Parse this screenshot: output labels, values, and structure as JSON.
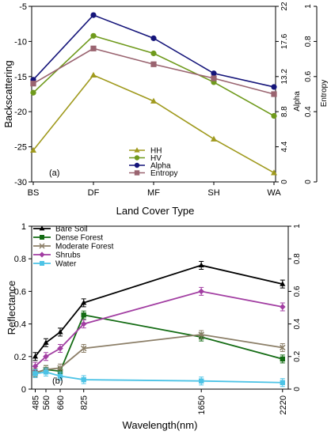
{
  "chart_data": [
    {
      "type": "line",
      "panel_label": "(a)",
      "xlabel": "Land Cover Type",
      "ylabel": "Backscattering",
      "categories": [
        "BS",
        "DF",
        "MF",
        "SH",
        "WA"
      ],
      "ylim": [
        -30,
        -5
      ],
      "yticks": [
        "-30",
        "-25",
        "-20",
        "-15",
        "-10",
        "-5"
      ],
      "ylabel_right_alpha": "Alpha",
      "ylabel_right_entropy": "Entropy",
      "alpha_ticks": [
        "0",
        "4.4",
        "8.8",
        "13.2",
        "17.6",
        "22"
      ],
      "entropy_ticks": [
        "0",
        "0.4",
        "0.6",
        "0.8",
        "1"
      ],
      "legend_position": "bottom-center",
      "grid": false,
      "series": [
        {
          "name": "HH",
          "color": "#a09a1e",
          "marker": "triangle",
          "values": [
            -25.5,
            -14.8,
            -18.5,
            -23.9,
            -28.7
          ]
        },
        {
          "name": "HV",
          "color": "#6f9a1c",
          "marker": "circle",
          "values": [
            -17.3,
            -9.2,
            -11.7,
            -15.8,
            -20.6
          ]
        },
        {
          "name": "Alpha",
          "color": "#15157a",
          "marker": "circle",
          "values": [
            12.8,
            20.9,
            18.0,
            13.6,
            11.9
          ]
        },
        {
          "name": "Entropy",
          "color": "#9a6470",
          "marker": "square",
          "values": [
            0.56,
            0.76,
            0.67,
            0.59,
            0.5
          ]
        }
      ]
    },
    {
      "type": "line",
      "panel_label": "(b)",
      "xlabel": "Wavelength(nm)",
      "ylabel": "Reflectance",
      "x": [
        485,
        560,
        660,
        825,
        1650,
        2220
      ],
      "xticks": [
        "485",
        "560",
        "660",
        "825",
        "1650",
        "2220"
      ],
      "ylim": [
        0,
        1
      ],
      "yticks": [
        "0",
        "0.2",
        "0.4",
        "0.6",
        "0.8",
        "1"
      ],
      "right_ticks": [
        "0",
        "0.2",
        "0.4",
        "0.6",
        "0.8",
        "1"
      ],
      "legend_position": "top-left",
      "grid": false,
      "series": [
        {
          "name": "Bare Soil",
          "color": "#000000",
          "marker": "triangle",
          "values": [
            0.2,
            0.285,
            0.35,
            0.53,
            0.76,
            0.645
          ]
        },
        {
          "name": "Dense Forest",
          "color": "#136b13",
          "marker": "square",
          "values": [
            0.1,
            0.12,
            0.11,
            0.455,
            0.32,
            0.185
          ]
        },
        {
          "name": "Moderate Forest",
          "color": "#8c7f68",
          "marker": "x",
          "values": [
            0.1,
            0.12,
            0.13,
            0.25,
            0.335,
            0.255
          ]
        },
        {
          "name": "Shrubs",
          "color": "#a23ea2",
          "marker": "diamond",
          "values": [
            0.14,
            0.2,
            0.25,
            0.4,
            0.6,
            0.505
          ]
        },
        {
          "name": "Water",
          "color": "#4cc3e6",
          "marker": "square",
          "values": [
            0.095,
            0.105,
            0.08,
            0.058,
            0.05,
            0.04
          ]
        }
      ]
    }
  ]
}
